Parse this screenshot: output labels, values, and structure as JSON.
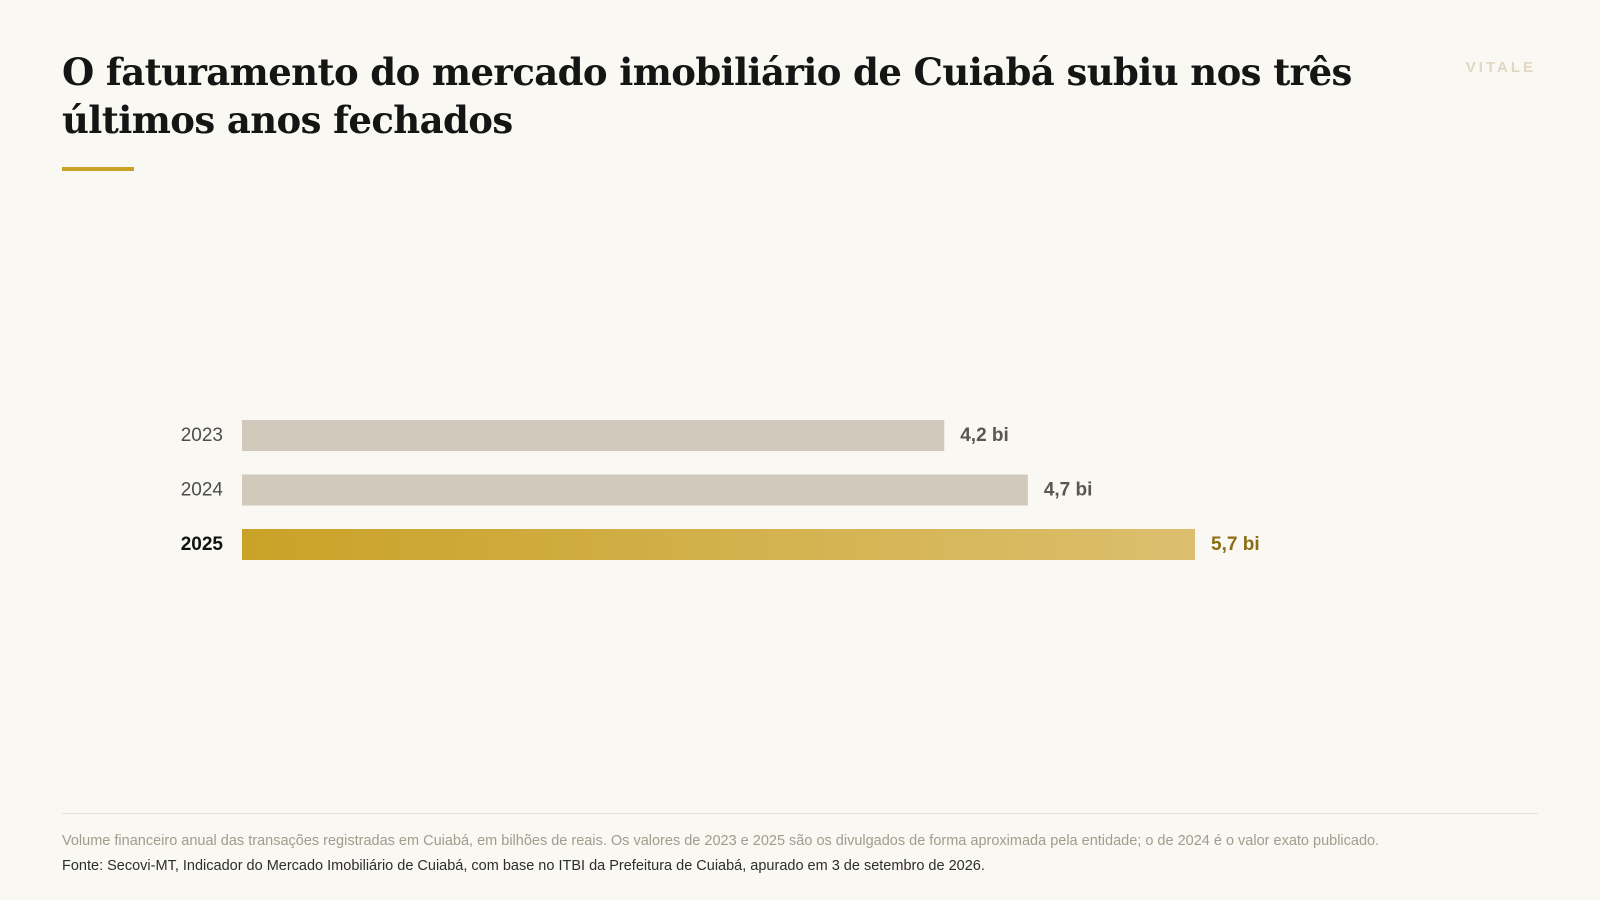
{
  "header": {
    "title": "O faturamento do mercado imobiliário de Cuiabá subiu nos três últimos anos fechados",
    "brand": "VITALE"
  },
  "colors": {
    "accent": "#c9a227",
    "accent_light": "#dcbf6e",
    "bar_muted": "#d1c9bc",
    "label_muted": "#4d4d4d",
    "value_muted": "#5a5752",
    "value_highlight": "#8a6d14",
    "background": "#f9f8f3"
  },
  "chart_data": {
    "type": "bar",
    "orientation": "horizontal",
    "categories": [
      "2023",
      "2024",
      "2025"
    ],
    "values": [
      4.2,
      4.7,
      5.7
    ],
    "value_labels": [
      "4,2 bi",
      "4,7 bi",
      "5,7 bi"
    ],
    "highlight": "2025",
    "title": "",
    "xlabel": "",
    "ylabel": "",
    "unit": "bilhões de reais",
    "grid": false,
    "legend": "none"
  },
  "footer": {
    "note": "Volume financeiro anual das transações registradas em Cuiabá, em bilhões de reais. Os valores de 2023 e 2025 são os divulgados de forma aproximada pela entidade; o de 2024 é o valor exato publicado.",
    "source": "Fonte: Secovi-MT, Indicador do Mercado Imobiliário de Cuiabá, com base no ITBI da Prefeitura de Cuiabá, apurado em 3 de setembro de 2026."
  }
}
